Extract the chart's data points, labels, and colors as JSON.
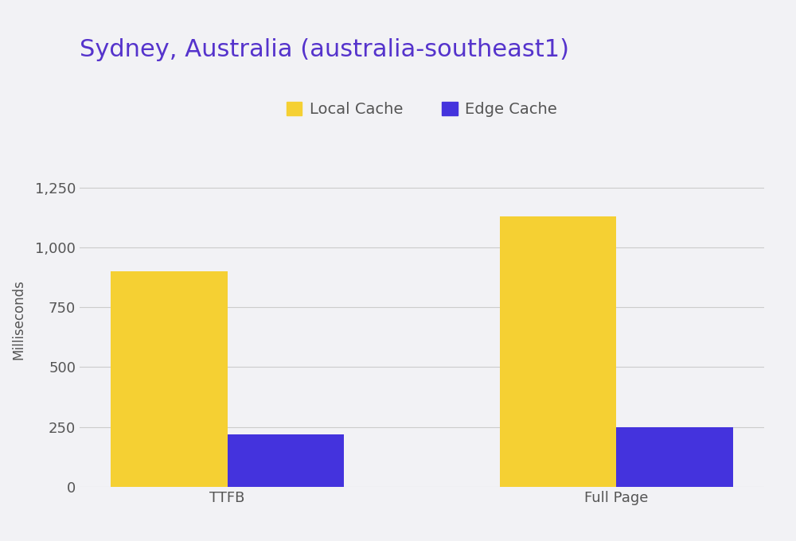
{
  "title": "Sydney, Australia (australia-southeast1)",
  "title_color": "#5533cc",
  "title_fontsize": 22,
  "ylabel": "Milliseconds",
  "ylabel_fontsize": 12,
  "ylabel_color": "#555555",
  "background_color": "#f2f2f5",
  "categories": [
    "TTFB",
    "Full Page"
  ],
  "local_cache_values": [
    900,
    1130
  ],
  "edge_cache_values": [
    220,
    250
  ],
  "local_cache_color": "#f5d033",
  "edge_cache_color": "#4433dd",
  "legend_labels": [
    "Local Cache",
    "Edge Cache"
  ],
  "ylim": [
    0,
    1400
  ],
  "yticks": [
    0,
    250,
    500,
    750,
    1000,
    1250
  ],
  "ytick_labels": [
    "0",
    "250",
    "500",
    "750",
    "1,000",
    "1,250"
  ],
  "bar_width": 0.3,
  "grid_color": "#cccccc",
  "tick_color": "#555555",
  "tick_fontsize": 13,
  "figsize": [
    10.0,
    6.8
  ],
  "dpi": 100
}
